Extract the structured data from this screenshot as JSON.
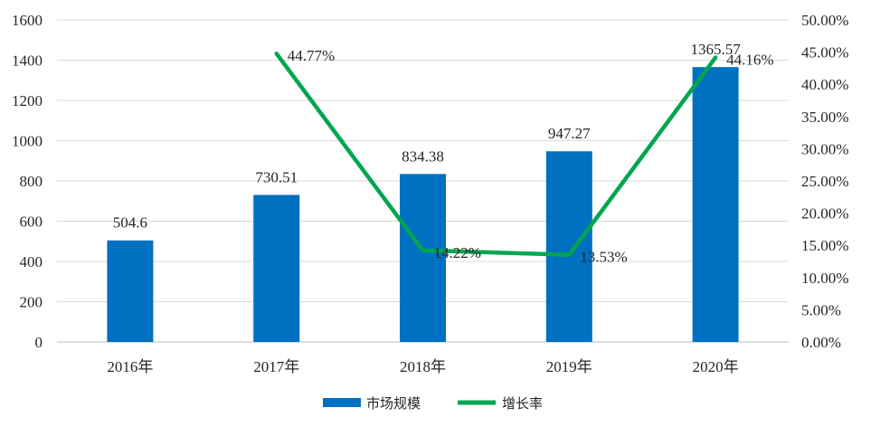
{
  "chart_data": {
    "type": "bar",
    "categories": [
      "2016年",
      "2017年",
      "2018年",
      "2019年",
      "2020年"
    ],
    "series": [
      {
        "name": "市场规模",
        "type": "bar",
        "axis": "left",
        "color": "#0070C0",
        "values": [
          504.6,
          730.51,
          834.38,
          947.27,
          1365.57
        ],
        "labels": [
          "504.6",
          "730.51",
          "834.38",
          "947.27",
          "1365.57"
        ]
      },
      {
        "name": "增长率",
        "type": "line",
        "axis": "right",
        "color": "#00A651",
        "values": [
          null,
          44.77,
          14.22,
          13.53,
          44.16
        ],
        "labels": [
          "",
          "44.77%",
          "14.22%",
          "13.53%",
          "44.16%"
        ]
      }
    ],
    "y_left": {
      "min": 0,
      "max": 1600,
      "ticks": [
        "0",
        "200",
        "400",
        "600",
        "800",
        "1000",
        "1200",
        "1400",
        "1600"
      ]
    },
    "y_right": {
      "min": 0,
      "max": 50,
      "ticks": [
        "0.00%",
        "5.00%",
        "10.00%",
        "15.00%",
        "20.00%",
        "25.00%",
        "30.00%",
        "35.00%",
        "40.00%",
        "45.00%",
        "50.00%"
      ]
    },
    "grid": true,
    "legend": "bottom-center"
  }
}
